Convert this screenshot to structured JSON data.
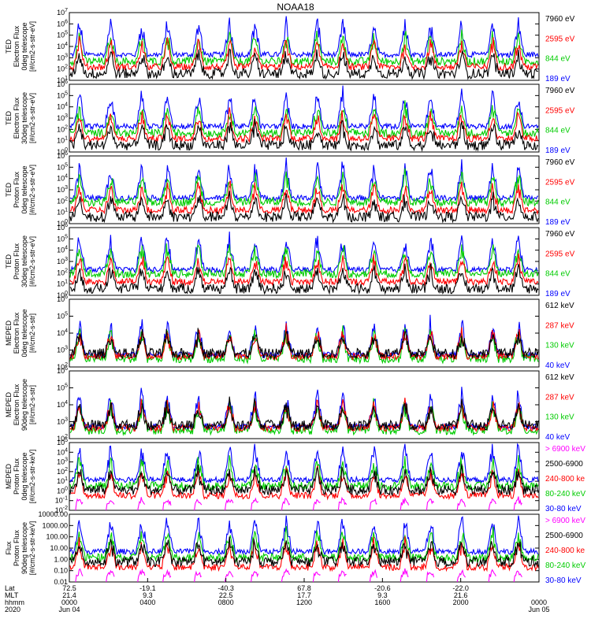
{
  "title": "NOAA18",
  "colors": {
    "black": "#000000",
    "red": "#ff0000",
    "green": "#00cc00",
    "blue": "#0000ff",
    "magenta": "#ff00ff"
  },
  "panels": [
    {
      "ylabel": [
        "TED",
        "Electron Flux",
        "0deg telescope",
        "[#/cm2-s-str-eV]"
      ],
      "yticks": [
        "10^1",
        "10^2",
        "10^3",
        "10^4",
        "10^5",
        "10^6",
        "10^7"
      ],
      "ymin": 0,
      "ymax": 7,
      "log": true,
      "legend": [
        {
          "text": "7960 eV",
          "color": "black"
        },
        {
          "text": "2595 eV",
          "color": "red"
        },
        {
          "text": "844 eV",
          "color": "green"
        },
        {
          "text": "189 eV",
          "color": "blue"
        }
      ]
    },
    {
      "ylabel": [
        "TED",
        "Electron Flux",
        "30deg telescope",
        "[#/cm2-s-str-eV]"
      ],
      "yticks": [
        "10^0",
        "10^1",
        "10^2",
        "10^3",
        "10^4",
        "10^5",
        "10^6"
      ],
      "ymin": 0,
      "ymax": 6,
      "log": true,
      "legend": [
        {
          "text": "7960 eV",
          "color": "black"
        },
        {
          "text": "2595 eV",
          "color": "red"
        },
        {
          "text": "844 eV",
          "color": "green"
        },
        {
          "text": "189 eV",
          "color": "blue"
        }
      ]
    },
    {
      "ylabel": [
        "TED",
        "Proton Flux",
        "0deg telescope",
        "[#/cm2-s-str-eV]"
      ],
      "yticks": [
        "10^0",
        "10^1",
        "10^2",
        "10^3",
        "10^4",
        "10^5",
        "10^6"
      ],
      "ymin": 0,
      "ymax": 6,
      "log": true,
      "legend": [
        {
          "text": "7960 eV",
          "color": "black"
        },
        {
          "text": "2595 eV",
          "color": "red"
        },
        {
          "text": "844 eV",
          "color": "green"
        },
        {
          "text": "189 eV",
          "color": "blue"
        }
      ]
    },
    {
      "ylabel": [
        "TED",
        "Proton Flux",
        "30deg telescope",
        "[#/cm2-s-str-eV]"
      ],
      "yticks": [
        "10^0",
        "10^1",
        "10^2",
        "10^3",
        "10^4",
        "10^5",
        "10^6"
      ],
      "ymin": 0,
      "ymax": 6,
      "log": true,
      "legend": [
        {
          "text": "7960 eV",
          "color": "black"
        },
        {
          "text": "2595 eV",
          "color": "red"
        },
        {
          "text": "844 eV",
          "color": "green"
        },
        {
          "text": "189 eV",
          "color": "blue"
        }
      ]
    },
    {
      "ylabel": [
        "MEPED",
        "Electron Flux",
        "0deg telescope",
        "[#/cm2-s-str]"
      ],
      "yticks": [
        "10^2",
        "10^3",
        "10^4",
        "10^5",
        "10^6"
      ],
      "ymin": 2,
      "ymax": 6,
      "log": true,
      "legend": [
        {
          "text": "612 keV",
          "color": "black"
        },
        {
          "text": "287 keV",
          "color": "red"
        },
        {
          "text": "130 keV",
          "color": "green"
        },
        {
          "text": "40 keV",
          "color": "blue"
        }
      ]
    },
    {
      "ylabel": [
        "MEPED",
        "Electron Flux",
        "90deg telescope",
        "[#/cm2-s-str]"
      ],
      "yticks": [
        "10^2",
        "10^3",
        "10^4",
        "10^5",
        "10^6"
      ],
      "ymin": 2,
      "ymax": 6,
      "log": true,
      "legend": [
        {
          "text": "612 keV",
          "color": "black"
        },
        {
          "text": "287 keV",
          "color": "red"
        },
        {
          "text": "130 keV",
          "color": "green"
        },
        {
          "text": "40 keV",
          "color": "blue"
        }
      ]
    },
    {
      "ylabel": [
        "MEPED",
        "Proton Flux",
        "0deg telescope",
        "[#/cm2-s-str-keV]"
      ],
      "yticks": [
        "10^-2",
        "10^-1",
        "10^0",
        "10^1",
        "10^2",
        "10^3",
        "10^4",
        "10^5"
      ],
      "ymin": -2,
      "ymax": 5,
      "log": true,
      "legend": [
        {
          "text": "> 6900 keV",
          "color": "magenta"
        },
        {
          "text": "2500-6900",
          "color": "black"
        },
        {
          "text": "240-800 ke",
          "color": "red"
        },
        {
          "text": "80-240 keV",
          "color": "green"
        },
        {
          "text": "30-80 keV",
          "color": "blue"
        }
      ]
    },
    {
      "ylabel": [
        "Flux",
        "Proton Flux",
        "90deg telescope",
        "[#/cm2-s-str-keV]"
      ],
      "yticks": [
        "0.01",
        "0.10",
        "1.00",
        "10.00",
        "100.00",
        "1000.00",
        "10000.00"
      ],
      "ymin": -2,
      "ymax": 4,
      "log": true,
      "legend": [
        {
          "text": "> 6900 keV",
          "color": "magenta"
        },
        {
          "text": "2500-6900",
          "color": "black"
        },
        {
          "text": "240-800 ke",
          "color": "red"
        },
        {
          "text": "80-240 keV",
          "color": "green"
        },
        {
          "text": "30-80 keV",
          "color": "blue"
        }
      ]
    }
  ],
  "xaxis": {
    "row_labels": [
      "Lat",
      "MLT",
      "hhmm",
      "2020"
    ],
    "ticks": [
      {
        "lat": "72.5",
        "mlt": "21.4",
        "hhmm": "0000",
        "date": "Jun 04"
      },
      {
        "lat": "-19.1",
        "mlt": "9.3",
        "hhmm": "0400",
        "date": ""
      },
      {
        "lat": "-40.3",
        "mlt": "22.5",
        "hhmm": "0800",
        "date": ""
      },
      {
        "lat": "67.8",
        "mlt": "17.7",
        "hhmm": "1200",
        "date": ""
      },
      {
        "lat": "-20.6",
        "mlt": "9.3",
        "hhmm": "1600",
        "date": ""
      },
      {
        "lat": "-22.0",
        "mlt": "21.6",
        "hhmm": "2000",
        "date": ""
      },
      {
        "lat": "",
        "mlt": "",
        "hhmm": "0000",
        "date": "Jun 05"
      }
    ]
  },
  "chart_data": {
    "type": "line",
    "title": "NOAA18",
    "x_range": [
      "2020-06-04 00:00",
      "2020-06-05 00:00"
    ],
    "x_ticks_hhmm": [
      "0000",
      "0400",
      "0800",
      "1200",
      "1600",
      "2000",
      "0000"
    ],
    "series_per_panel": [
      [
        "7960 eV",
        "2595 eV",
        "844 eV",
        "189 eV"
      ],
      [
        "7960 eV",
        "2595 eV",
        "844 eV",
        "189 eV"
      ],
      [
        "7960 eV",
        "2595 eV",
        "844 eV",
        "189 eV"
      ],
      [
        "7960 eV",
        "2595 eV",
        "844 eV",
        "189 eV"
      ],
      [
        "612 keV",
        "287 keV",
        "130 keV",
        "40 keV"
      ],
      [
        "612 keV",
        "287 keV",
        "130 keV",
        "40 keV"
      ],
      [
        "> 6900 keV",
        "2500-6900",
        "240-800 ke",
        "80-240 keV",
        "30-80 keV"
      ],
      [
        "> 6900 keV",
        "2500-6900",
        "240-800 ke",
        "80-240 keV",
        "30-80 keV"
      ]
    ],
    "y_scale": "log"
  }
}
